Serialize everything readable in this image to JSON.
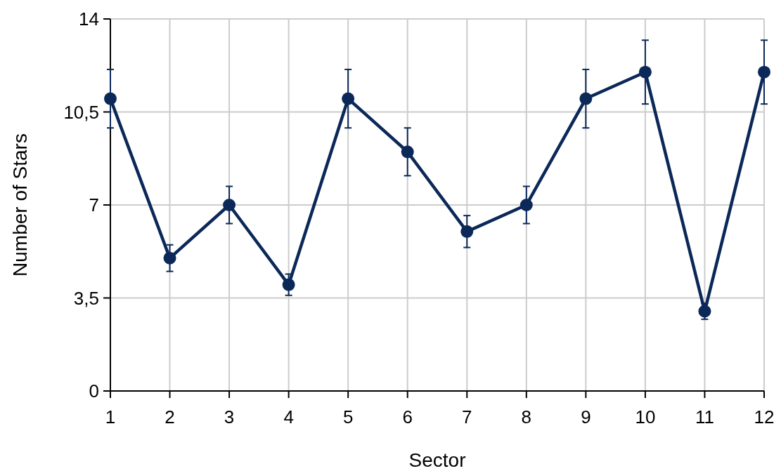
{
  "chart_data": {
    "type": "line",
    "xlabel": "Sector",
    "ylabel": "Number of Stars",
    "x": [
      1,
      2,
      3,
      4,
      5,
      6,
      7,
      8,
      9,
      10,
      11,
      12
    ],
    "series": [
      {
        "color": "#0b2858",
        "values": [
          11,
          5,
          7,
          4,
          11,
          9,
          6,
          7,
          11,
          12,
          3,
          12
        ],
        "errors": [
          1.1,
          0.5,
          0.7,
          0.4,
          1.1,
          0.9,
          0.6,
          0.7,
          1.1,
          1.2,
          0.3,
          1.2
        ]
      }
    ],
    "xlim": [
      1,
      12
    ],
    "xticks": [
      1,
      2,
      3,
      4,
      5,
      6,
      7,
      8,
      9,
      10,
      11,
      12
    ],
    "ylim": [
      0,
      14
    ],
    "yticks": [
      0,
      {
        "value": 3.5,
        "label": "3,5"
      },
      7,
      {
        "value": 10.5,
        "label": "10,5"
      },
      14
    ],
    "grid": true,
    "marker": "circle",
    "line_style": "solid"
  }
}
